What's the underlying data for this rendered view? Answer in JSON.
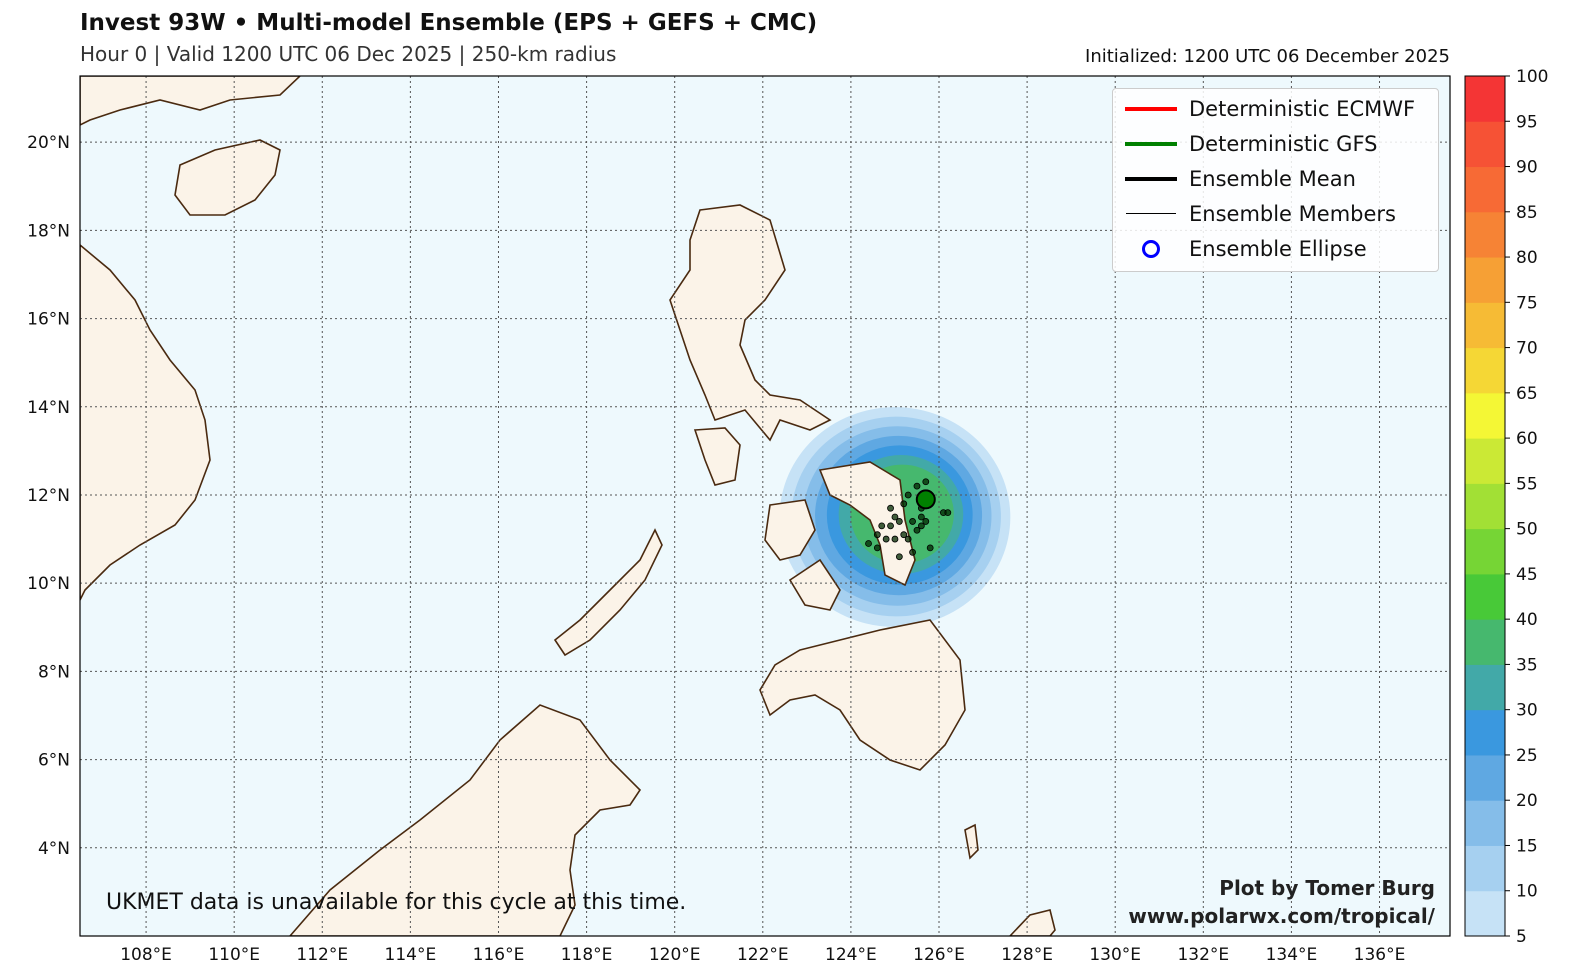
{
  "header": {
    "title": "Invest 93W • Multi-model Ensemble (EPS + GEFS + CMC)",
    "subtitle": "Hour 0 | Valid 1200 UTC 06 Dec 2025 | 250-km radius",
    "initialized": "Initialized: 1200 UTC 06 December 2025"
  },
  "legend": [
    {
      "label": "Deterministic ECMWF",
      "color": "#ff0000",
      "style": "thick-line"
    },
    {
      "label": "Deterministic GFS",
      "color": "#008000",
      "style": "thick-line"
    },
    {
      "label": "Ensemble Mean",
      "color": "#000000",
      "style": "thick-line"
    },
    {
      "label": "Ensemble Members",
      "color": "#000000",
      "style": "thin-line"
    },
    {
      "label": "Ensemble Ellipse",
      "color": "#0000ff",
      "style": "circle"
    }
  ],
  "note": "UKMET data is unavailable for this cycle at this time.",
  "credit": {
    "line1": "Plot by Tomer Burg",
    "line2": "www.polarwx.com/tropical/"
  },
  "chart_data": {
    "type": "map-probability",
    "extent": {
      "lon": [
        106.5,
        137.6
      ],
      "lat": [
        2.0,
        21.5
      ]
    },
    "lon_ticks": [
      "108°E",
      "110°E",
      "112°E",
      "114°E",
      "116°E",
      "118°E",
      "120°E",
      "122°E",
      "124°E",
      "126°E",
      "128°E",
      "130°E",
      "132°E",
      "134°E",
      "136°E"
    ],
    "lat_ticks": [
      "4°N",
      "6°N",
      "8°N",
      "10°N",
      "12°N",
      "14°N",
      "16°N",
      "18°N",
      "20°N"
    ],
    "grid": true,
    "colorbar": {
      "levels": [
        5,
        10,
        15,
        20,
        25,
        30,
        35,
        40,
        45,
        50,
        55,
        60,
        65,
        70,
        75,
        80,
        85,
        90,
        95,
        100
      ],
      "colors": [
        "#c6e2f6",
        "#a6d0f0",
        "#85bde9",
        "#5fa8e2",
        "#3a98df",
        "#42a9a8",
        "#46b86e",
        "#48c938",
        "#76d535",
        "#a2e035",
        "#cbe935",
        "#f4f735",
        "#f5d735",
        "#f6bb35",
        "#f6a035",
        "#f68335",
        "#f76a35",
        "#f65235",
        "#f43535"
      ]
    },
    "probability_center": {
      "lon": 125.0,
      "lat": 11.5
    },
    "probability_max": 40,
    "gfs_position": {
      "lon": 125.7,
      "lat": 11.9
    },
    "member_positions": [
      [
        125.5,
        12.2
      ],
      [
        125.3,
        12.0
      ],
      [
        125.6,
        11.7
      ],
      [
        125.2,
        11.8
      ],
      [
        125.0,
        11.5
      ],
      [
        124.9,
        11.3
      ],
      [
        125.1,
        11.4
      ],
      [
        125.4,
        11.4
      ],
      [
        125.6,
        11.5
      ],
      [
        125.7,
        11.4
      ],
      [
        125.5,
        11.2
      ],
      [
        124.7,
        11.3
      ],
      [
        124.8,
        11.0
      ],
      [
        125.0,
        11.0
      ],
      [
        125.2,
        11.1
      ],
      [
        125.3,
        11.0
      ],
      [
        124.4,
        10.9
      ],
      [
        124.6,
        11.1
      ],
      [
        124.6,
        10.8
      ],
      [
        125.8,
        10.8
      ],
      [
        126.1,
        11.6
      ],
      [
        126.2,
        11.6
      ],
      [
        125.4,
        10.7
      ],
      [
        125.1,
        10.6
      ],
      [
        125.7,
        12.3
      ],
      [
        124.9,
        11.7
      ],
      [
        125.6,
        11.3
      ]
    ]
  }
}
